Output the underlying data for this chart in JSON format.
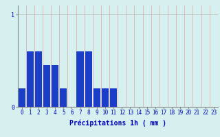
{
  "values": [
    0.2,
    0.6,
    0.6,
    0.45,
    0.45,
    0.2,
    0.0,
    0.6,
    0.6,
    0.2,
    0.2,
    0.2,
    0.0,
    0.0,
    0.0,
    0.0,
    0.0,
    0.0,
    0.0,
    0.0,
    0.0,
    0.0,
    0.0,
    0.0
  ],
  "bar_color": "#1a3ec8",
  "background_color": "#d6f0f0",
  "grid_color_v": "#e8a0a0",
  "grid_color_h": "#b0b0b0",
  "xlabel": "Précipitations 1h ( mm )",
  "ylim": [
    0,
    1.1
  ],
  "xlim": [
    -0.5,
    23.5
  ],
  "xtick_labels": [
    "0",
    "1",
    "2",
    "3",
    "4",
    "5",
    "6",
    "7",
    "8",
    "9",
    "10",
    "11",
    "12",
    "13",
    "14",
    "15",
    "16",
    "17",
    "18",
    "19",
    "20",
    "21",
    "22",
    "23"
  ],
  "xlabel_color": "#0000bb",
  "tick_color": "#0000bb",
  "axis_color": "#888888",
  "label_fontsize": 5.5,
  "xlabel_fontsize": 7
}
